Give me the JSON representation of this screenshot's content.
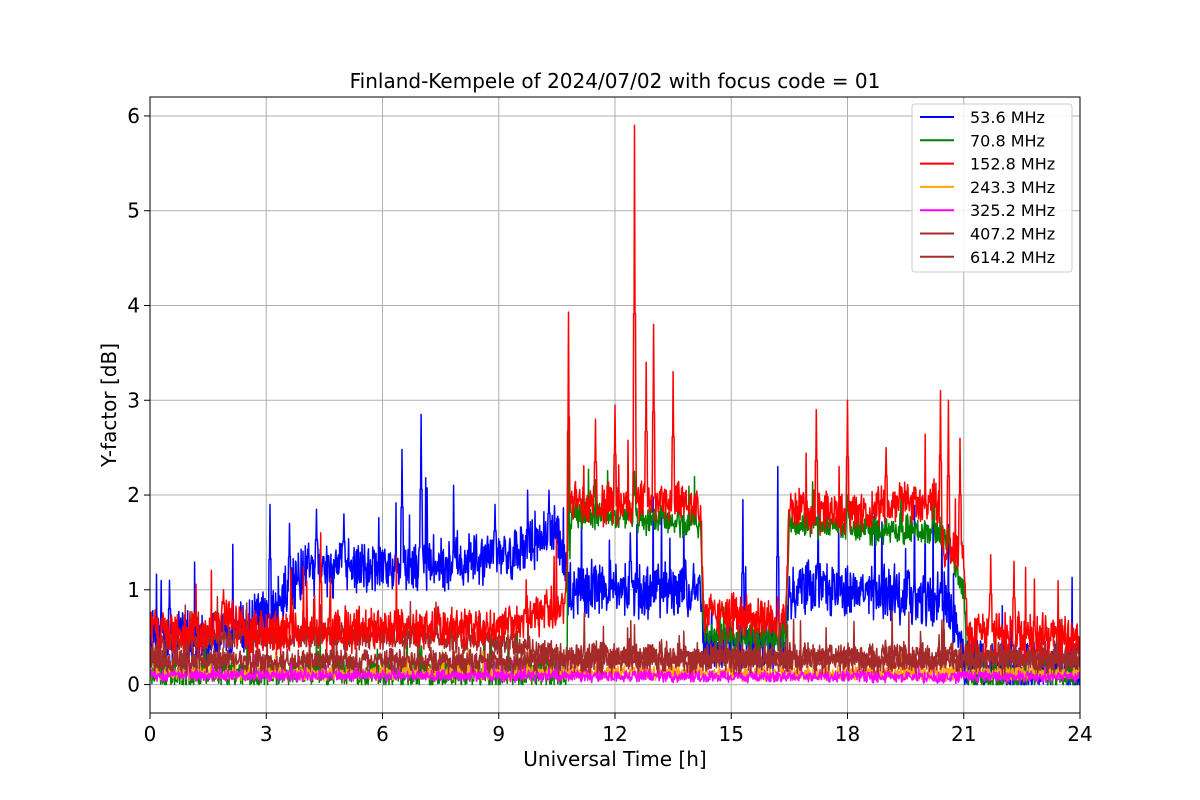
{
  "chart_data": {
    "type": "line",
    "title": "Finland-Kempele of 2024/07/02 with focus code = 01",
    "xlabel": "Universal Time [h]",
    "ylabel": "Y-factor [dB]",
    "xlim": [
      0,
      24
    ],
    "ylim": [
      -0.3,
      6.2
    ],
    "xticks": [
      0,
      3,
      6,
      9,
      12,
      15,
      18,
      21,
      24
    ],
    "yticks": [
      0,
      1,
      2,
      3,
      4,
      5,
      6
    ],
    "grid": true,
    "legend_position": "top-right",
    "series": [
      {
        "name": " 53.6 MHz",
        "color": "#0000ff",
        "base": [
          [
            0,
            0.6
          ],
          [
            0.5,
            0.5
          ],
          [
            1.5,
            0.45
          ],
          [
            3,
            0.7
          ],
          [
            4,
            1.2
          ],
          [
            6,
            1.25
          ],
          [
            8,
            1.3
          ],
          [
            9,
            1.35
          ],
          [
            10.5,
            1.6
          ],
          [
            10.8,
            1.0
          ],
          [
            12,
            1.0
          ],
          [
            14.2,
            1.0
          ],
          [
            14.3,
            0.4
          ],
          [
            16.4,
            0.4
          ],
          [
            16.5,
            1.0
          ],
          [
            18,
            1.0
          ],
          [
            20.5,
            0.9
          ],
          [
            20.9,
            0.5
          ],
          [
            21,
            0.2
          ],
          [
            24,
            0.15
          ]
        ],
        "noise": 0.45,
        "spikes": [
          [
            0.5,
            1.1
          ],
          [
            3.1,
            1.9
          ],
          [
            3.6,
            1.7
          ],
          [
            4.3,
            1.85
          ],
          [
            5.0,
            1.8
          ],
          [
            6.5,
            2.48
          ],
          [
            7.0,
            2.85
          ],
          [
            8.9,
            1.9
          ],
          [
            10.3,
            2.05
          ],
          [
            12.4,
            1.6
          ],
          [
            15.3,
            1.95
          ],
          [
            16.2,
            2.3
          ]
        ]
      },
      {
        "name": " 70.8 MHz",
        "color": "#008000",
        "base": [
          [
            0,
            0.12
          ],
          [
            10.8,
            0.12
          ],
          [
            10.85,
            1.8
          ],
          [
            14.2,
            1.7
          ],
          [
            14.3,
            0.5
          ],
          [
            16.4,
            0.5
          ],
          [
            16.5,
            1.7
          ],
          [
            20.5,
            1.6
          ],
          [
            21,
            1.0
          ],
          [
            21.1,
            0.1
          ],
          [
            24,
            0.1
          ]
        ],
        "noise": 0.25,
        "spikes": [
          [
            10.8,
            2.7
          ],
          [
            12.5,
            2.25
          ],
          [
            18,
            2.0
          ]
        ]
      },
      {
        "name": "152.8 MHz",
        "color": "#ff0000",
        "base": [
          [
            0,
            0.6
          ],
          [
            1.5,
            0.55
          ],
          [
            2,
            0.75
          ],
          [
            2.5,
            0.55
          ],
          [
            4,
            0.55
          ],
          [
            6,
            0.6
          ],
          [
            9,
            0.6
          ],
          [
            10.7,
            0.85
          ],
          [
            10.85,
            1.9
          ],
          [
            12,
            1.9
          ],
          [
            13,
            1.95
          ],
          [
            14.2,
            1.9
          ],
          [
            14.3,
            0.75
          ],
          [
            16.4,
            0.7
          ],
          [
            16.5,
            1.85
          ],
          [
            18,
            1.8
          ],
          [
            19,
            1.9
          ],
          [
            20.3,
            1.95
          ],
          [
            20.5,
            1.4
          ],
          [
            21,
            1.4
          ],
          [
            21.1,
            0.55
          ],
          [
            24,
            0.5
          ]
        ],
        "noise": 0.35,
        "spikes": [
          [
            1.9,
            1.0
          ],
          [
            4.4,
            1.6
          ],
          [
            10.8,
            3.93
          ],
          [
            11.5,
            2.8
          ],
          [
            12.0,
            2.95
          ],
          [
            12.5,
            5.9
          ],
          [
            12.8,
            3.4
          ],
          [
            13.0,
            3.8
          ],
          [
            13.5,
            3.3
          ],
          [
            17.2,
            2.9
          ],
          [
            18.0,
            3.0
          ],
          [
            19.0,
            2.5
          ],
          [
            20.4,
            3.1
          ],
          [
            20.6,
            3.0
          ],
          [
            20.9,
            2.6
          ],
          [
            21.7,
            1.37
          ],
          [
            22.3,
            1.3
          ]
        ]
      },
      {
        "name": "243.3 MHz",
        "color": "#ffa500",
        "base": [
          [
            0,
            0.12
          ],
          [
            24,
            0.12
          ]
        ],
        "noise": 0.12,
        "spikes": []
      },
      {
        "name": "325.2 MHz",
        "color": "#ff00ff",
        "base": [
          [
            0,
            0.1
          ],
          [
            24,
            0.08
          ]
        ],
        "noise": 0.1,
        "spikes": [
          [
            1.0,
            0.3
          ]
        ]
      },
      {
        "name": "407.2 MHz",
        "color": "#a52a2a",
        "base": [
          [
            0,
            0.25
          ],
          [
            24,
            0.25
          ]
        ],
        "noise": 0.2,
        "spikes": []
      },
      {
        "name": "614.2 MHz",
        "color": "#a52a2a",
        "base": [
          [
            0,
            0.3
          ],
          [
            0.6,
            0.45
          ],
          [
            2.4,
            0.5
          ],
          [
            6,
            0.52
          ],
          [
            9,
            0.45
          ],
          [
            10.8,
            0.3
          ],
          [
            24,
            0.3
          ]
        ],
        "noise": 0.22,
        "spikes": []
      }
    ]
  }
}
